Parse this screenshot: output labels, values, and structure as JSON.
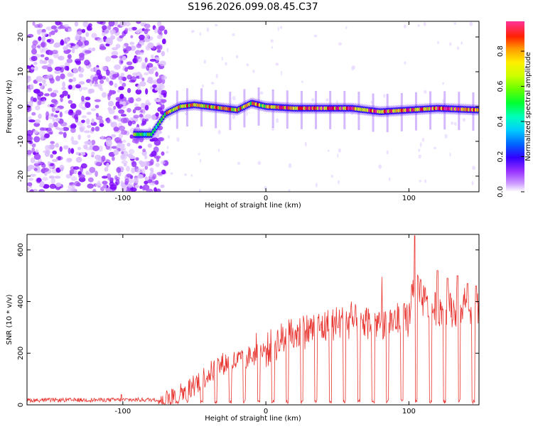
{
  "figure_title": "S196.2026.099.08.45.C37",
  "chart_data": [
    {
      "type": "heatmap",
      "title": "S196.2026.099.08.45.C37",
      "xlabel": "Height of straight line (km)",
      "ylabel": "Frequency (Hz)",
      "xlim": [
        -167,
        149
      ],
      "ylim": [
        -24.5,
        24.5
      ],
      "xticks": [
        -100,
        0,
        100
      ],
      "yticks": [
        -20,
        -10,
        0,
        10,
        20
      ],
      "colorbar": {
        "label": "Normalized spectral amplitude",
        "range": [
          0,
          0.97
        ],
        "ticks": [
          0.0,
          0.2,
          0.4,
          0.6,
          0.8
        ],
        "colors": [
          "#ffffff",
          "#9933ff",
          "#3300ff",
          "#0066ff",
          "#00ccff",
          "#00ffcc",
          "#00ff33",
          "#66ff00",
          "#ccff00",
          "#ffff00",
          "#ffaa00",
          "#ff5500",
          "#ff0000",
          "#ff0066",
          "#ff3399"
        ]
      },
      "ridge": {
        "x": [
          -90,
          -80,
          -70,
          -60,
          -50,
          -40,
          -30,
          -20,
          -10,
          0,
          20,
          40,
          60,
          80,
          100,
          120,
          149
        ],
        "y": [
          -8,
          -8,
          -2,
          0,
          0.5,
          0,
          -0.5,
          -1,
          1,
          0,
          -0.5,
          -0.5,
          -0.5,
          -1.5,
          -1,
          -0.5,
          -1
        ]
      }
    },
    {
      "type": "line",
      "xlabel": "Height of straight line (km)",
      "ylabel": "SNR (10 * v/v)",
      "xlim": [
        -167,
        149
      ],
      "ylim": [
        0,
        660
      ],
      "xticks": [
        -100,
        0,
        100
      ],
      "yticks": [
        0,
        200,
        400,
        600
      ],
      "series": [
        {
          "name": "SNR",
          "color": "#e8342f",
          "trend_x": [
            -167,
            -75,
            -65,
            -50,
            -40,
            -30,
            -20,
            -10,
            0,
            10,
            20,
            30,
            40,
            50,
            60,
            80,
            100,
            103,
            108,
            115,
            130,
            149
          ],
          "trend_y": [
            18,
            20,
            30,
            80,
            120,
            160,
            170,
            190,
            210,
            250,
            270,
            290,
            300,
            315,
            320,
            320,
            330,
            480,
            420,
            370,
            370,
            380
          ],
          "dip_x": [
            -62,
            -55,
            -45,
            -35,
            -25,
            -15,
            -5,
            5,
            15,
            25,
            35,
            45,
            55,
            65,
            75,
            85,
            95,
            105,
            115,
            125,
            135,
            145
          ],
          "spike_x": [
            -101,
            104,
            120,
            127,
            134,
            141,
            147
          ],
          "spike_y": [
            40,
            655,
            520,
            490,
            500,
            470,
            460
          ]
        }
      ]
    }
  ]
}
